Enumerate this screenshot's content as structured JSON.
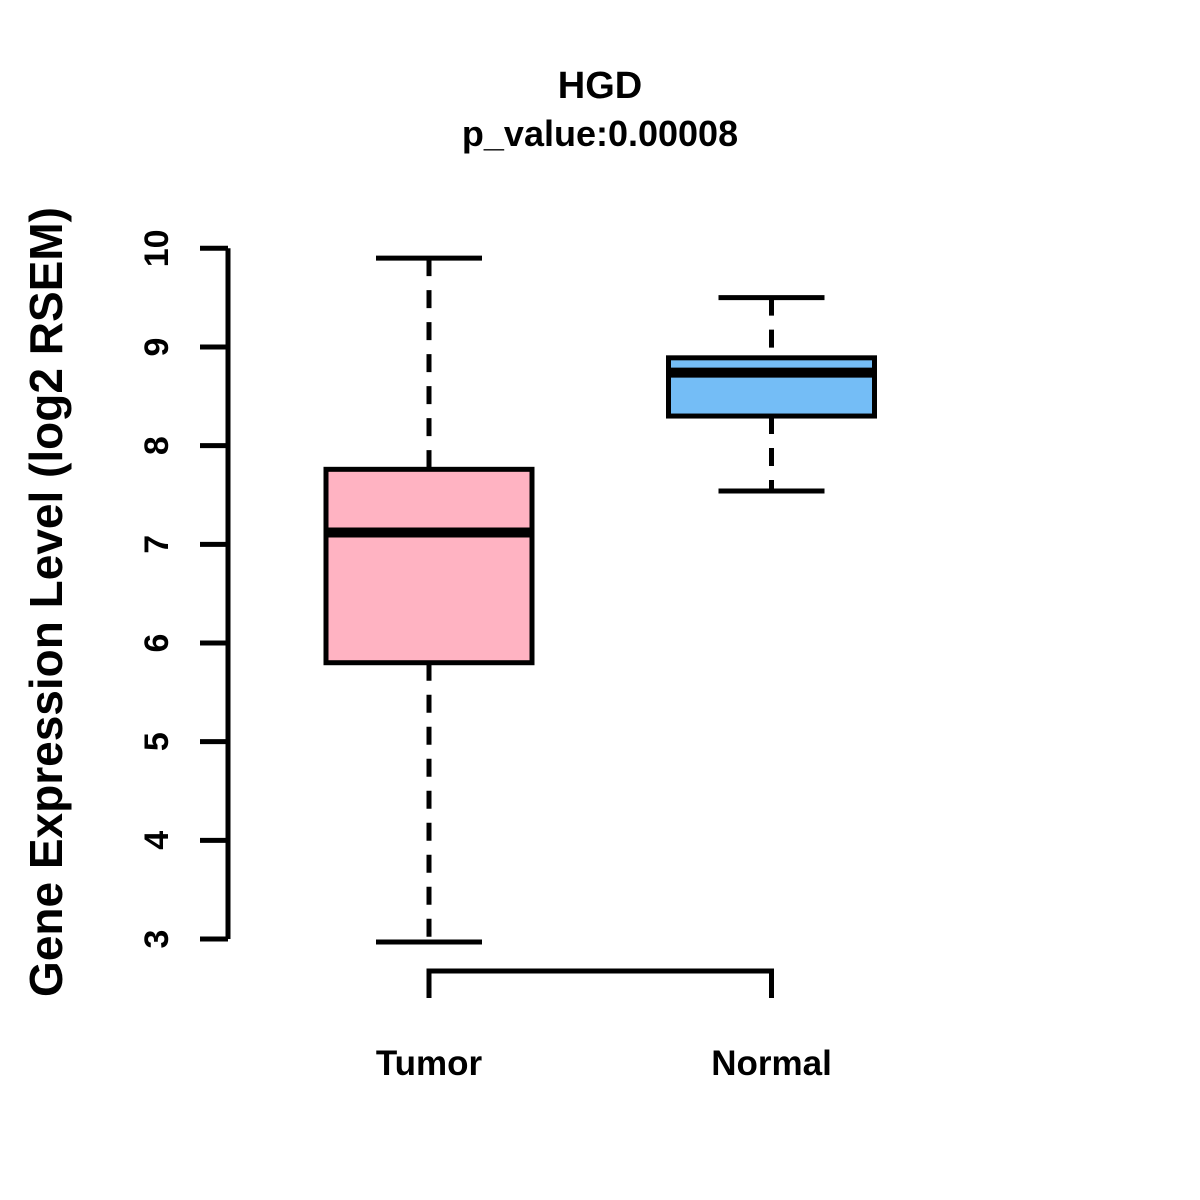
{
  "chart_data": {
    "type": "boxplot",
    "title": "HGD",
    "subtitle": "p_value:0.00008",
    "ylabel": "Gene Expression Level (log2 RSEM)",
    "xlabel": "",
    "categories": [
      "Tumor",
      "Normal"
    ],
    "y_ticks": [
      3,
      4,
      5,
      6,
      7,
      8,
      9,
      10
    ],
    "ylim": [
      2.9,
      10.0
    ],
    "grid": false,
    "legend": false,
    "whisker_style": "dashed",
    "box_border_color": "#000000",
    "median_color": "#000000",
    "series": [
      {
        "name": "Tumor",
        "color": "#FFB3C2",
        "whisker_low": 2.97,
        "q1": 5.8,
        "median": 7.12,
        "q3": 7.76,
        "whisker_high": 9.9
      },
      {
        "name": "Normal",
        "color": "#74BDF6",
        "whisker_low": 7.54,
        "q1": 8.3,
        "median": 8.74,
        "q3": 8.89,
        "whisker_high": 9.5
      }
    ]
  }
}
